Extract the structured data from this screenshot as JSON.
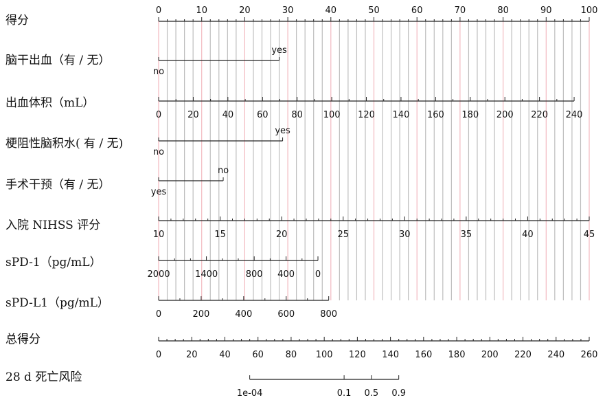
{
  "chart_data": {
    "type": "nomogram",
    "title": "",
    "points_scale": {
      "min": 0,
      "max": 100,
      "major_step": 10,
      "minor_step": 2
    },
    "rows": [
      {
        "id": "points",
        "label": "得分",
        "kind": "points",
        "ticks": [
          "0",
          "10",
          "20",
          "30",
          "40",
          "50",
          "60",
          "70",
          "80",
          "90",
          "100"
        ]
      },
      {
        "id": "ich",
        "label": "脑干出血（有 / 无）",
        "kind": "categorical",
        "levels": [
          {
            "name": "no",
            "points": 0
          },
          {
            "name": "yes",
            "points": 28
          }
        ]
      },
      {
        "id": "hv",
        "label": "出血体积（mL）",
        "kind": "continuous",
        "range": [
          0,
          240
        ],
        "points_at_max": 96.5,
        "ticks": [
          0,
          20,
          40,
          60,
          80,
          100,
          120,
          140,
          160,
          180,
          200,
          220,
          240
        ],
        "minor_step": 10
      },
      {
        "id": "edema",
        "label": "梗阻性脑积水( 有 / 无)",
        "kind": "categorical",
        "levels": [
          {
            "name": "no",
            "points": 0
          },
          {
            "name": "yes",
            "points": 28.8
          }
        ]
      },
      {
        "id": "surgery",
        "label": "手术干预（有 / 无）",
        "kind": "categorical",
        "levels": [
          {
            "name": "yes",
            "points": 0
          },
          {
            "name": "no",
            "points": 15
          }
        ]
      },
      {
        "id": "nihss",
        "label": "入院 NIHSS 评分",
        "kind": "continuous",
        "range": [
          10,
          45
        ],
        "points_at_max": 100,
        "ticks": [
          10,
          15,
          20,
          25,
          30,
          35,
          40,
          45
        ],
        "minor_step": 1
      },
      {
        "id": "spd1",
        "label": "sPD-1（pg/mL）",
        "kind": "continuous",
        "range": [
          2000,
          0
        ],
        "points_at_max": 37,
        "ticks": [
          2000,
          1400,
          800,
          400,
          0
        ],
        "minor_step": 200
      },
      {
        "id": "spdl1",
        "label": "sPD-L1（pg/mL）",
        "kind": "continuous",
        "range": [
          0,
          800
        ],
        "points_at_max": 39.5,
        "ticks": [
          0,
          200,
          400,
          600,
          800
        ],
        "minor_step": 100
      },
      {
        "id": "total",
        "label": "总得分",
        "kind": "total",
        "range": [
          0,
          260
        ],
        "ticks": [
          0,
          20,
          40,
          60,
          80,
          100,
          120,
          140,
          160,
          180,
          200,
          220,
          240,
          260
        ],
        "minor_step": 5
      },
      {
        "id": "risk",
        "label": "28 d 死亡风险",
        "kind": "risk",
        "ticks": [
          {
            "label": "1e-04",
            "total": 55
          },
          {
            "label": "0.1",
            "total": 112
          },
          {
            "label": "0.5",
            "total": 128.5
          },
          {
            "label": "0.9",
            "total": 145
          }
        ]
      }
    ]
  }
}
